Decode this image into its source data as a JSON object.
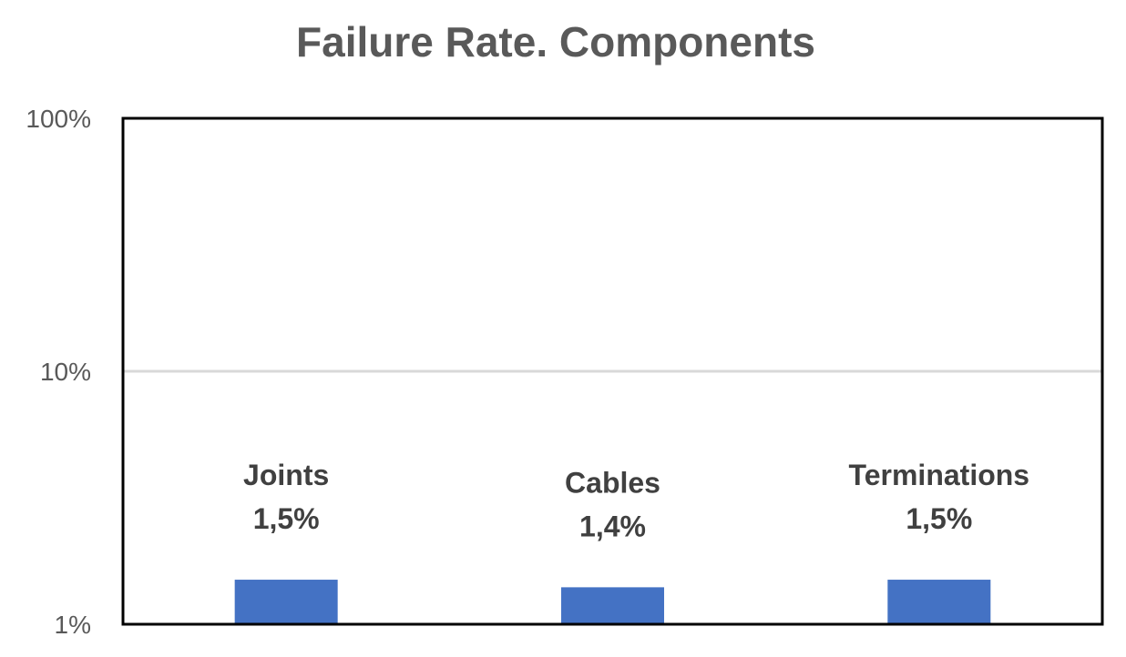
{
  "chart_data": {
    "type": "bar",
    "title": "Failure Rate. Components",
    "categories": [
      "Joints",
      "Cables",
      "Terminations"
    ],
    "values": [
      1.5,
      1.4,
      1.5
    ],
    "value_labels": [
      "1,5%",
      "1,4%",
      "1,5%"
    ],
    "y_scale": "log",
    "ylim": [
      1,
      100
    ],
    "y_ticks": [
      {
        "value": 1,
        "label": "1%"
      },
      {
        "value": 10,
        "label": "10%"
      },
      {
        "value": 100,
        "label": "100%"
      }
    ],
    "gridlines": true,
    "legend": "none",
    "bar_color": "#4472C4",
    "xlabel": "",
    "ylabel": ""
  }
}
